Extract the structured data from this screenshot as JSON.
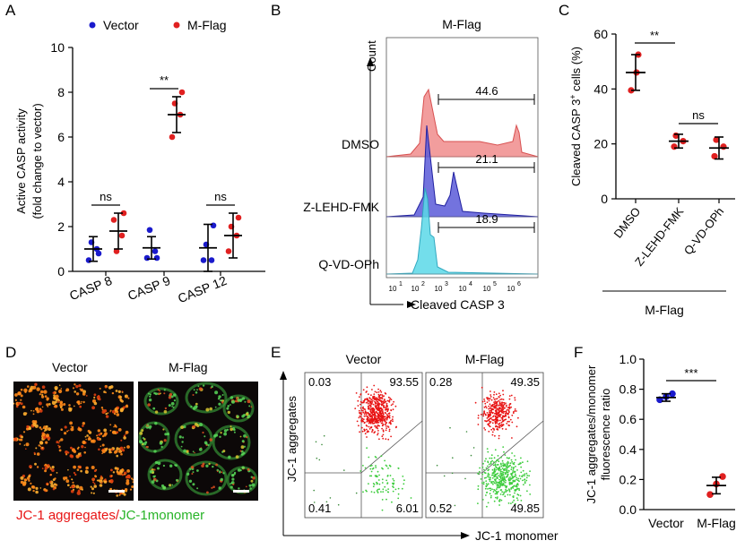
{
  "panel_labels": {
    "a": "A",
    "b": "B",
    "c": "C",
    "d": "D",
    "e": "E",
    "f": "F"
  },
  "colors": {
    "vector": "#1a1acc",
    "mflag": "#e02020",
    "dmso": "#f08c8c",
    "zlehd": "#5a5ad8",
    "qvd": "#5ad8e8",
    "scatter_red": "#e81414",
    "scatter_green": "#3ccc3c",
    "micro_bg": "#0c0808",
    "jc_red": "#e81414",
    "jc_green": "#28b428"
  },
  "chart_data": [
    {
      "type": "scatter",
      "ylabel_line1": "Active CASP activity",
      "ylabel_line2": "(fold change to vector)",
      "ylim": [
        0,
        10
      ],
      "yticks": [
        "0",
        "2",
        "4",
        "6",
        "8",
        "10"
      ],
      "categories": [
        "CASP 8",
        "CASP 9",
        "CASP 12"
      ],
      "series": [
        {
          "name": "Vector",
          "mean": [
            1.0,
            1.05,
            1.05
          ],
          "sd": [
            0.55,
            0.5,
            1.05
          ],
          "points": [
            [
              0.5,
              1.0,
              1.3,
              0.8
            ],
            [
              0.6,
              0.9,
              1.85,
              0.6
            ],
            [
              0.5,
              0.5,
              1.2,
              2.05
            ]
          ]
        },
        {
          "name": "M-Flag",
          "mean": [
            1.8,
            7.0,
            1.6
          ],
          "sd": [
            0.8,
            0.8,
            1.0
          ],
          "points": [
            [
              2.3,
              1.6,
              0.9,
              2.6
            ],
            [
              6.0,
              7.0,
              7.5,
              8.0
            ],
            [
              0.9,
              1.6,
              2.0,
              2.4
            ]
          ]
        }
      ],
      "annotations": [
        "ns",
        "**",
        "ns"
      ],
      "grid": false,
      "legend": "top"
    },
    {
      "type": "histogram",
      "title": "M-Flag",
      "ylabel": "Count",
      "xlabel": "Cleaved CASP 3",
      "xticks": [
        "10",
        "2",
        "10",
        "3",
        "10",
        "4",
        "10",
        "5",
        "10",
        "6"
      ],
      "xtick_base": [
        "10",
        "10",
        "10",
        "10",
        "10",
        "10"
      ],
      "xtick_exp": [
        "1",
        "2",
        "3",
        "4",
        "5",
        "6"
      ],
      "tracks": [
        {
          "name": "DMSO",
          "gate_value": "44.6"
        },
        {
          "name": "Z-LEHD-FMK",
          "gate_value": "21.1"
        },
        {
          "name": "Q-VD-OPh",
          "gate_value": "18.9"
        }
      ]
    },
    {
      "type": "scatter",
      "ylabel": "Cleaved CASP 3",
      "ylabel_sup": "+",
      "ylabel_suffix": " cells (%)",
      "ylim": [
        0,
        60
      ],
      "yticks": [
        "0",
        "20",
        "40",
        "60"
      ],
      "categories": [
        "DMSO",
        "Z-LEHD-FMK",
        "Q-VD-OPh"
      ],
      "group_label": "M-Flag",
      "mean": [
        46,
        21,
        18.5
      ],
      "sd": [
        6.5,
        2.5,
        4
      ],
      "points": [
        [
          39.5,
          46,
          52.5
        ],
        [
          19,
          21,
          23
        ],
        [
          15.5,
          19,
          21.5
        ]
      ],
      "annotations": [
        "**",
        "ns"
      ]
    },
    {
      "type": "scatter",
      "ylabel": "JC-1 aggregates",
      "xlabel": "JC-1 monomer",
      "plots": [
        {
          "title": "Vector",
          "q_ul": "0.03",
          "q_ur": "93.55",
          "q_ll": "0.41",
          "q_lr": "6.01"
        },
        {
          "title": "M-Flag",
          "q_ul": "0.28",
          "q_ur": "49.35",
          "q_ll": "0.52",
          "q_lr": "49.85"
        }
      ]
    },
    {
      "type": "scatter",
      "ylabel_line1": "JC-1 aggregates/monomer",
      "ylabel_line2": "fluorescence ratio",
      "ylim": [
        0,
        1.0
      ],
      "yticks": [
        "0.0",
        "0.2",
        "0.4",
        "0.6",
        "0.8",
        "1.0"
      ],
      "categories": [
        "Vector",
        "M-Flag"
      ],
      "mean": [
        0.745,
        0.16
      ],
      "sd": [
        0.025,
        0.055
      ],
      "points": [
        [
          0.73,
          0.75,
          0.77
        ],
        [
          0.1,
          0.17,
          0.22
        ]
      ],
      "annotations": [
        "***"
      ]
    }
  ],
  "panel_d": {
    "title_vector": "Vector",
    "title_mflag": "M-Flag",
    "caption_red": "JC-1 aggregates/",
    "caption_green": "JC-1monomer"
  }
}
